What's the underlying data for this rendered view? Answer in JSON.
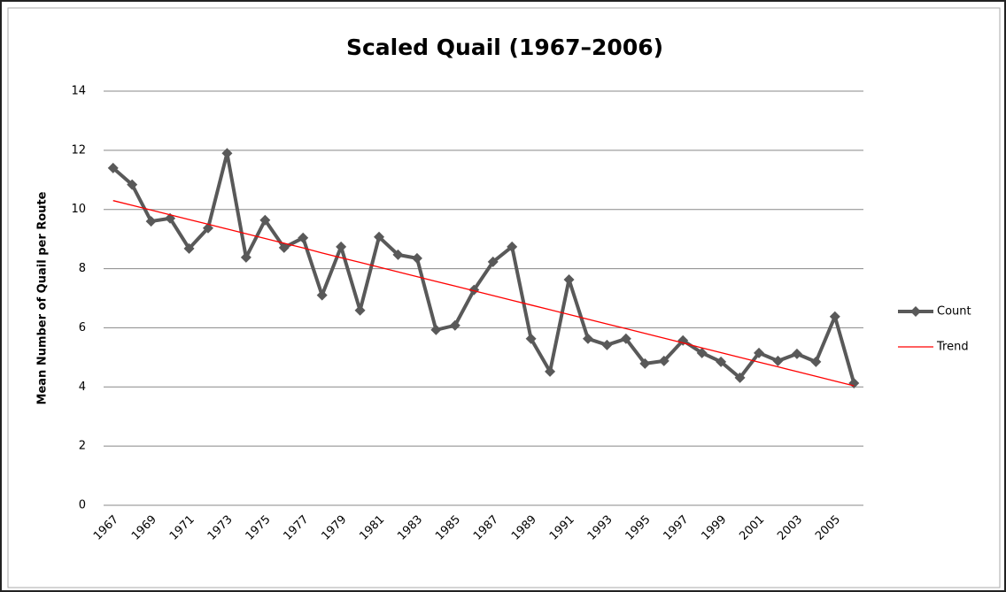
{
  "chart_data": {
    "type": "line",
    "title": "Scaled Quail (1967–2006)",
    "y_label": "Mean Number of Quail per Route",
    "categories": [
      "1967",
      null,
      "1969",
      null,
      "1971",
      null,
      "1973",
      null,
      "1975",
      null,
      "1977",
      null,
      "1979",
      null,
      "1981",
      null,
      "1983",
      null,
      "1985",
      null,
      "1987",
      null,
      "1989",
      null,
      "1991",
      null,
      "1993",
      null,
      "1995",
      null,
      "1997",
      null,
      "1999",
      null,
      "2001",
      null,
      "2003",
      null,
      "2005",
      null
    ],
    "series": [
      {
        "name": "Count",
        "color": "#595959",
        "marker": "diamond",
        "values": [
          11.4,
          10.84,
          9.6,
          9.7,
          8.68,
          9.37,
          11.9,
          8.38,
          9.64,
          8.71,
          9.04,
          7.1,
          8.74,
          6.59,
          9.07,
          8.47,
          8.35,
          5.93,
          6.08,
          7.28,
          8.23,
          8.74,
          5.63,
          4.52,
          7.63,
          5.63,
          5.42,
          5.63,
          4.79,
          4.88,
          5.57,
          5.15,
          4.85,
          4.31,
          5.15,
          4.88,
          5.12,
          4.85,
          6.38,
          4.13
        ]
      },
      {
        "name": "Trend",
        "color": "#ff0000",
        "values": [
          10.3,
          10.14,
          9.98,
          9.82,
          9.66,
          9.5,
          9.34,
          9.18,
          9.02,
          8.86,
          8.7,
          8.53,
          8.37,
          8.21,
          8.05,
          7.89,
          7.73,
          7.57,
          7.41,
          7.25,
          7.09,
          6.93,
          6.77,
          6.61,
          6.45,
          6.29,
          6.13,
          5.97,
          5.81,
          5.65,
          5.49,
          5.32,
          5.16,
          5.0,
          4.84,
          4.68,
          4.52,
          4.36,
          4.2,
          4.04
        ]
      }
    ],
    "ylim": [
      0,
      14
    ],
    "yticks": [
      0,
      2,
      4,
      6,
      8,
      10,
      12,
      14
    ],
    "grid": true,
    "legend": "right"
  }
}
